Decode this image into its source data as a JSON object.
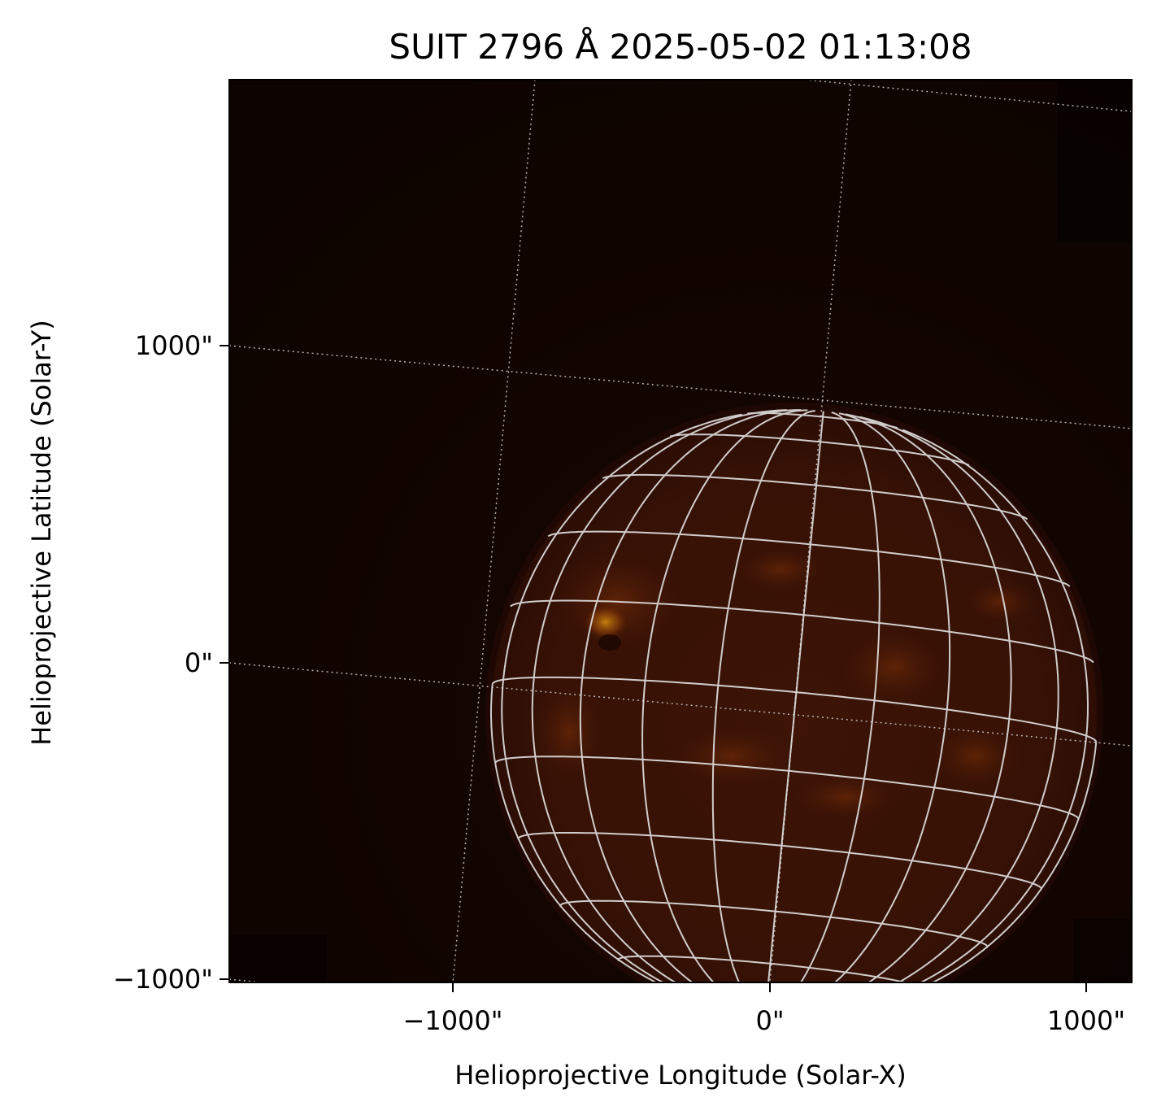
{
  "figure": {
    "title": "SUIT 2796 Å 2025-05-02 01:13:08",
    "xlabel": "Helioprojective Longitude (Solar-X)",
    "ylabel": "Helioprojective Latitude (Solar-Y)",
    "x_ticks": [
      "−1000\"",
      "0\"",
      "1000\""
    ],
    "y_ticks": [
      "1000\"",
      "0\"",
      "−1000\""
    ]
  },
  "image": {
    "subject": "solar disk observed in Mg II k 2796 Å",
    "colormap": "dark red-orange",
    "background_color": "#110500",
    "disk_color": "#3a1206",
    "bright_region_color": "#c07a10",
    "grid_color": "#d8d8d8",
    "overlay": "heliographic latitude/longitude grid",
    "helioprojective_grid": "dotted"
  }
}
